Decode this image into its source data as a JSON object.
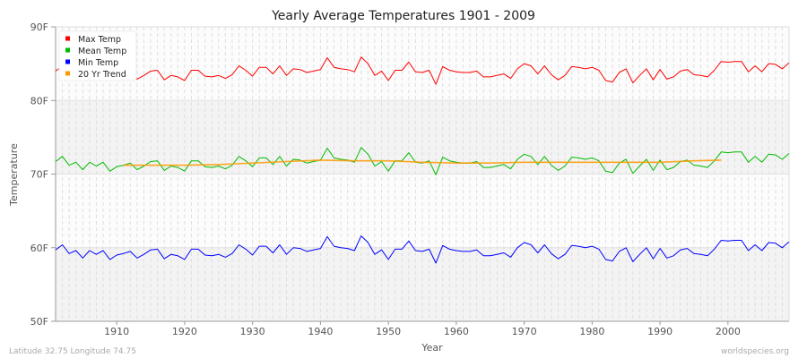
{
  "chart_data": {
    "type": "line",
    "title": "Yearly Average Temperatures 1901 - 2009",
    "xlabel": "Year",
    "ylabel": "Temperature",
    "xlim": [
      1901,
      2009
    ],
    "ylim": [
      50,
      90
    ],
    "x_ticks": [
      1910,
      1920,
      1930,
      1940,
      1950,
      1960,
      1970,
      1980,
      1990,
      2000
    ],
    "y_ticks": [
      {
        "v": 50,
        "label": "50F"
      },
      {
        "v": 60,
        "label": "60F"
      },
      {
        "v": 70,
        "label": "70F"
      },
      {
        "v": 80,
        "label": "80F"
      },
      {
        "v": 90,
        "label": "90F"
      }
    ],
    "grid": true,
    "legend_position": "top-left",
    "x_start": 1901,
    "series": [
      {
        "name": "Max Temp",
        "color": "#ff0000",
        "values": [
          84.0,
          84.7,
          83.5,
          83.9,
          82.9,
          83.9,
          83.4,
          83.9,
          82.7,
          83.3,
          83.5,
          83.8,
          82.9,
          83.4,
          84.0,
          84.1,
          82.8,
          83.4,
          83.2,
          82.7,
          84.1,
          84.1,
          83.3,
          83.2,
          83.4,
          83.0,
          83.5,
          84.7,
          84.1,
          83.3,
          84.5,
          84.5,
          83.6,
          84.7,
          83.4,
          84.3,
          84.2,
          83.8,
          84.0,
          84.2,
          85.8,
          84.5,
          84.3,
          84.2,
          83.9,
          85.9,
          85.0,
          83.4,
          84.0,
          82.7,
          84.1,
          84.1,
          85.2,
          83.9,
          83.8,
          84.1,
          82.2,
          84.6,
          84.1,
          83.9,
          83.8,
          83.8,
          84.0,
          83.2,
          83.2,
          83.4,
          83.6,
          83.0,
          84.3,
          85.0,
          84.7,
          83.6,
          84.7,
          83.5,
          82.8,
          83.4,
          84.6,
          84.5,
          84.3,
          84.5,
          84.1,
          82.7,
          82.5,
          83.8,
          84.3,
          82.4,
          83.4,
          84.3,
          82.8,
          84.2,
          82.9,
          83.2,
          84.0,
          84.2,
          83.5,
          83.4,
          83.2,
          84.1,
          85.3,
          85.2,
          85.3,
          85.3,
          83.9,
          84.7,
          83.9,
          85.0,
          84.9,
          84.3,
          85.1
        ]
      },
      {
        "name": "Mean Temp",
        "color": "#00bb00",
        "values": [
          71.7,
          72.4,
          71.2,
          71.6,
          70.6,
          71.6,
          71.1,
          71.6,
          70.4,
          71.0,
          71.2,
          71.5,
          70.6,
          71.1,
          71.7,
          71.8,
          70.5,
          71.1,
          70.9,
          70.4,
          71.8,
          71.8,
          71.0,
          70.9,
          71.1,
          70.7,
          71.2,
          72.4,
          71.8,
          71.0,
          72.2,
          72.2,
          71.3,
          72.4,
          71.1,
          72.0,
          71.9,
          71.5,
          71.7,
          71.9,
          73.5,
          72.2,
          72.0,
          71.9,
          71.6,
          73.6,
          72.7,
          71.1,
          71.7,
          70.4,
          71.8,
          71.8,
          72.9,
          71.6,
          71.5,
          71.8,
          69.9,
          72.3,
          71.8,
          71.6,
          71.5,
          71.5,
          71.7,
          70.9,
          70.9,
          71.1,
          71.3,
          70.7,
          72.0,
          72.7,
          72.4,
          71.3,
          72.4,
          71.2,
          70.5,
          71.1,
          72.3,
          72.2,
          72.0,
          72.2,
          71.8,
          70.4,
          70.2,
          71.5,
          72.0,
          70.1,
          71.1,
          72.0,
          70.5,
          71.9,
          70.6,
          70.9,
          71.7,
          71.9,
          71.2,
          71.1,
          70.9,
          71.8,
          73.0,
          72.9,
          73.0,
          73.0,
          71.6,
          72.4,
          71.6,
          72.7,
          72.6,
          72.0,
          72.8
        ]
      },
      {
        "name": "Min Temp",
        "color": "#0000ff",
        "values": [
          59.7,
          60.4,
          59.2,
          59.6,
          58.6,
          59.6,
          59.1,
          59.6,
          58.4,
          59.0,
          59.2,
          59.5,
          58.6,
          59.1,
          59.7,
          59.8,
          58.5,
          59.1,
          58.9,
          58.4,
          59.8,
          59.8,
          59.0,
          58.9,
          59.1,
          58.7,
          59.2,
          60.4,
          59.8,
          59.0,
          60.2,
          60.2,
          59.3,
          60.4,
          59.1,
          60.0,
          59.9,
          59.5,
          59.7,
          59.9,
          61.5,
          60.2,
          60.0,
          59.9,
          59.6,
          61.6,
          60.7,
          59.1,
          59.7,
          58.4,
          59.8,
          59.8,
          60.9,
          59.6,
          59.5,
          59.8,
          57.9,
          60.3,
          59.8,
          59.6,
          59.5,
          59.5,
          59.7,
          58.9,
          58.9,
          59.1,
          59.3,
          58.7,
          60.0,
          60.7,
          60.4,
          59.3,
          60.4,
          59.2,
          58.5,
          59.1,
          60.3,
          60.2,
          60.0,
          60.2,
          59.8,
          58.4,
          58.2,
          59.5,
          60.0,
          58.1,
          59.1,
          60.0,
          58.5,
          59.9,
          58.6,
          58.9,
          59.7,
          59.9,
          59.2,
          59.1,
          58.9,
          59.8,
          61.0,
          60.9,
          61.0,
          61.0,
          59.6,
          60.4,
          59.6,
          60.7,
          60.6,
          60.0,
          60.8
        ]
      },
      {
        "name": "20 Yr Trend",
        "color": "#ff9900",
        "x": [
          1911,
          1915,
          1920,
          1925,
          1930,
          1935,
          1940,
          1945,
          1950,
          1955,
          1960,
          1965,
          1970,
          1975,
          1980,
          1985,
          1990,
          1995,
          1999
        ],
        "values": [
          71.2,
          71.2,
          71.2,
          71.3,
          71.5,
          71.7,
          71.9,
          71.8,
          71.8,
          71.6,
          71.5,
          71.5,
          71.6,
          71.6,
          71.6,
          71.6,
          71.6,
          71.8,
          71.9
        ]
      }
    ]
  },
  "footer": {
    "location": "Latitude 32.75 Longitude 74.75",
    "source": "worldspecies.org"
  }
}
